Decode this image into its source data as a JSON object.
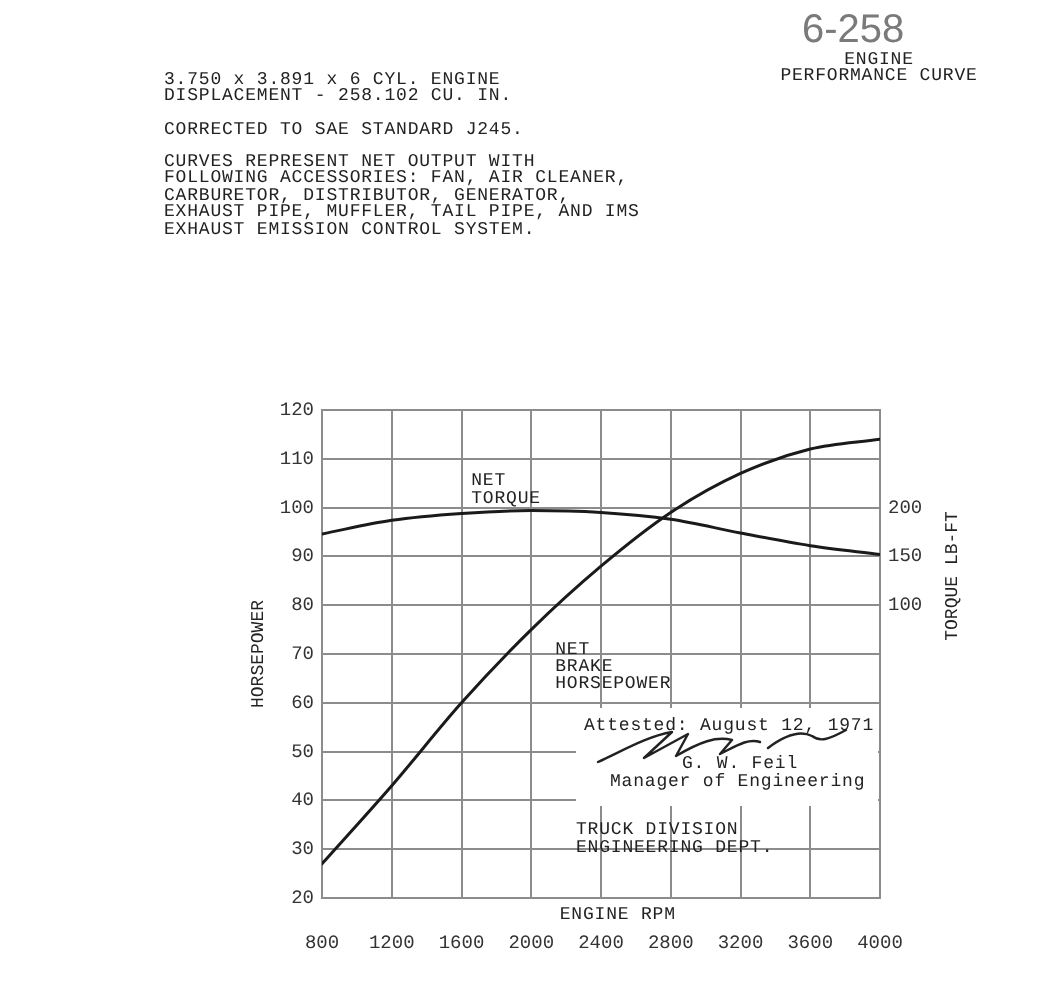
{
  "chart_data": {
    "type": "line",
    "title": "ENGINE PERFORMANCE CURVE",
    "xlabel": "ENGINE RPM",
    "ylabel": "HORSEPOWER",
    "y2label": "TORQUE LB-FT",
    "annotations": [
      "6-258",
      "3.750 x 3.891 x 6 CYL. ENGINE DISPLACEMENT - 258.102 CU. IN.",
      "CORRECTED TO SAE STANDARD J245.",
      "CURVES REPRESENT NET OUTPUT WITH FOLLOWING ACCESSORIES: FAN, AIR CLEANER, CARBURETOR, DISTRIBUTOR, GENERATOR, EXHAUST PIPE, MUFFLER, TAIL PIPE, AND IMS EXHAUST EMISSION CONTROL SYSTEM.",
      "Attested: August 12, 1971",
      "G. W. Feil",
      "Manager of Engineering",
      "TRUCK DIVISION",
      "ENGINEERING DEPT."
    ],
    "x": [
      800,
      1200,
      1600,
      2000,
      2400,
      2800,
      3200,
      3600,
      4000
    ],
    "series": [
      {
        "name": "NET TORQUE",
        "color": "#1a1a1a",
        "axis": "y2",
        "values": [
          173,
          187,
          194,
          197,
          195,
          188,
          174,
          161,
          152
        ]
      },
      {
        "name": "NET BRAKE HORSEPOWER",
        "color": "#1a1a1a",
        "values": [
          27,
          43,
          60,
          75,
          88,
          99,
          107,
          112,
          114
        ]
      }
    ],
    "xlim": [
      800,
      4000
    ],
    "xticks": [
      800,
      1200,
      1600,
      2000,
      2400,
      2800,
      3200,
      3600,
      4000
    ],
    "ylim": [
      20,
      120
    ],
    "yticks": [
      20,
      30,
      40,
      50,
      60,
      70,
      80,
      90,
      100,
      110,
      120
    ],
    "y2lim": [
      -200,
      300
    ],
    "y2ticks": [
      100,
      150,
      200
    ],
    "grid": true,
    "line_style": "solid"
  }
}
